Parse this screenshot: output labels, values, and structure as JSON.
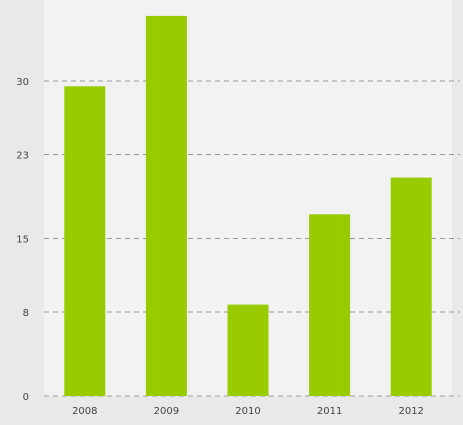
{
  "chart_data": {
    "type": "bar",
    "categories": [
      "2008",
      "2009",
      "2010",
      "2011",
      "2012"
    ],
    "values": [
      29.5,
      36.2,
      8.7,
      17.3,
      20.8
    ],
    "yticks": [
      0,
      8,
      15,
      23,
      30
    ],
    "ylim": [
      0,
      37.6
    ],
    "grid": true,
    "colors": {
      "bar": "#99cc00",
      "plot_background": "#f2f2f2",
      "page_background": "#e9e9e9",
      "gridline": "#9a9a9a",
      "text": "#444444"
    }
  }
}
